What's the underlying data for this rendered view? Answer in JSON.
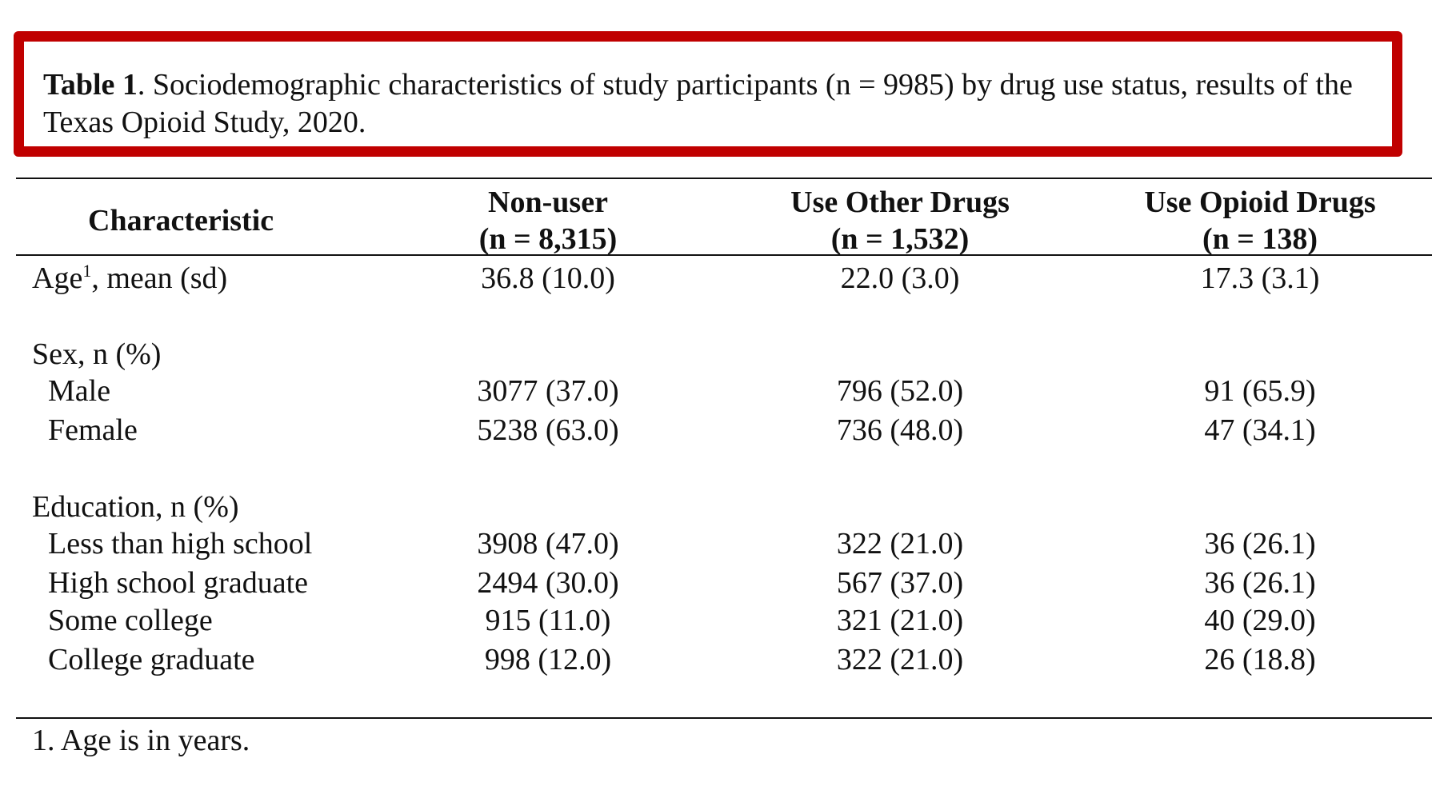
{
  "caption": {
    "label": "Table 1",
    "text": ". Sociodemographic characteristics of study participants (n = 9985) by drug use status, results of the Texas Opioid Study, 2020."
  },
  "colors": {
    "caption_border": "#c00000",
    "text": "#111111"
  },
  "header": {
    "characteristic": "Characteristic",
    "columns": [
      {
        "title": "Non-user",
        "n": "(n = 8,315)"
      },
      {
        "title": "Use Other Drugs",
        "n": "(n = 1,532)"
      },
      {
        "title": "Use Opioid Drugs",
        "n": "(n = 138)"
      }
    ]
  },
  "age": {
    "label": "Age",
    "sup": "1",
    "label_rest": ", mean (sd)",
    "values": [
      "36.8 (10.0)",
      "22.0 (3.0)",
      "17.3 (3.1)"
    ]
  },
  "sex": {
    "heading": "Sex, n (%)",
    "rows": [
      {
        "label": "Male",
        "values": [
          "3077 (37.0)",
          "796 (52.0)",
          "91 (65.9)"
        ]
      },
      {
        "label": "Female",
        "values": [
          "5238 (63.0)",
          "736 (48.0)",
          "47 (34.1)"
        ]
      }
    ]
  },
  "education": {
    "heading": "Education, n (%)",
    "rows": [
      {
        "label": "Less than high school",
        "values": [
          "3908 (47.0)",
          "322 (21.0)",
          "36 (26.1)"
        ]
      },
      {
        "label": "High school graduate",
        "values": [
          "2494 (30.0)",
          "567 (37.0)",
          "36 (26.1)"
        ]
      },
      {
        "label": "Some college",
        "values": [
          "915 (11.0)",
          "321 (21.0)",
          "40 (29.0)"
        ]
      },
      {
        "label": "College graduate",
        "values": [
          "998 (12.0)",
          "322 (21.0)",
          "26 (18.8)"
        ]
      }
    ]
  },
  "footnote": "1. Age is in years."
}
